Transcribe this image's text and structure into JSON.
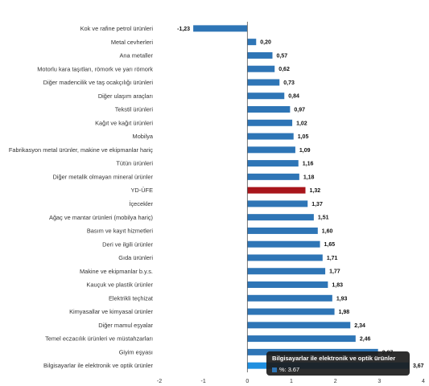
{
  "chart_data": {
    "type": "bar",
    "orientation": "horizontal",
    "categories": [
      "Kok ve rafine petrol ürünleri",
      "Metal cevherleri",
      "Ana metaller",
      "Motorlu kara taşıtları, römork ve yarı römork",
      "Diğer madencilik ve taş ocakçılığı ürünleri",
      "Diğer ulaşım araçları",
      "Tekstil ürünleri",
      "Kağıt ve kağıt ürünleri",
      "Mobilya",
      "Fabrikasyon metal ürünler, makine ve ekipmanlar hariç",
      "Tütün ürünleri",
      "Diğer metalik olmayan mineral ürünler",
      "YD-ÜFE",
      "İçecekler",
      "Ağaç ve mantar ürünleri (mobilya hariç)",
      "Basım ve kayıt hizmetleri",
      "Deri ve ilgili ürünler",
      "Gıda ürünleri",
      "Makine ve ekipmanlar b.y.s.",
      "Kauçuk ve plastik ürünler",
      "Elektrikli teçhizat",
      "Kimyasallar ve kimyasal ürünler",
      "Diğer mamul eşyalar",
      "Temel eczacılık ürünleri ve müstahzarları",
      "Giyim eşyası",
      "Bilgisayarlar ile elektronik ve optik ürünler"
    ],
    "values": [
      -1.23,
      0.2,
      0.57,
      0.62,
      0.73,
      0.84,
      0.97,
      1.02,
      1.05,
      1.09,
      1.16,
      1.18,
      1.32,
      1.37,
      1.51,
      1.6,
      1.65,
      1.71,
      1.77,
      1.83,
      1.93,
      1.98,
      2.34,
      2.46,
      2.97,
      3.67
    ],
    "value_labels": [
      "-1,23",
      "0,20",
      "0,57",
      "0,62",
      "0,73",
      "0,84",
      "0,97",
      "1,02",
      "1,05",
      "1,09",
      "1,16",
      "1,18",
      "1,32",
      "1,37",
      "1,51",
      "1,60",
      "1,65",
      "1,71",
      "1,77",
      "1,83",
      "1,93",
      "1,98",
      "2,34",
      "2,46",
      "2,97",
      "3,67"
    ],
    "xlim": [
      -2,
      4
    ],
    "x_ticks": [
      -2,
      -1,
      0,
      1,
      2,
      3,
      4
    ],
    "highlight_category": "YD-ÜFE",
    "hovered_category": "Bilgisayarlar ile elektronik ve optik ürünler",
    "colors": {
      "bar": "#2e75b6",
      "highlight": "#a8151b",
      "hovered": "#1f8fe0"
    },
    "grid": false,
    "legend": "none"
  },
  "tooltip": {
    "title": "Bilgisayarlar ile elektronik ve optik ürünler",
    "series_label": "%:",
    "value": "3.67"
  }
}
